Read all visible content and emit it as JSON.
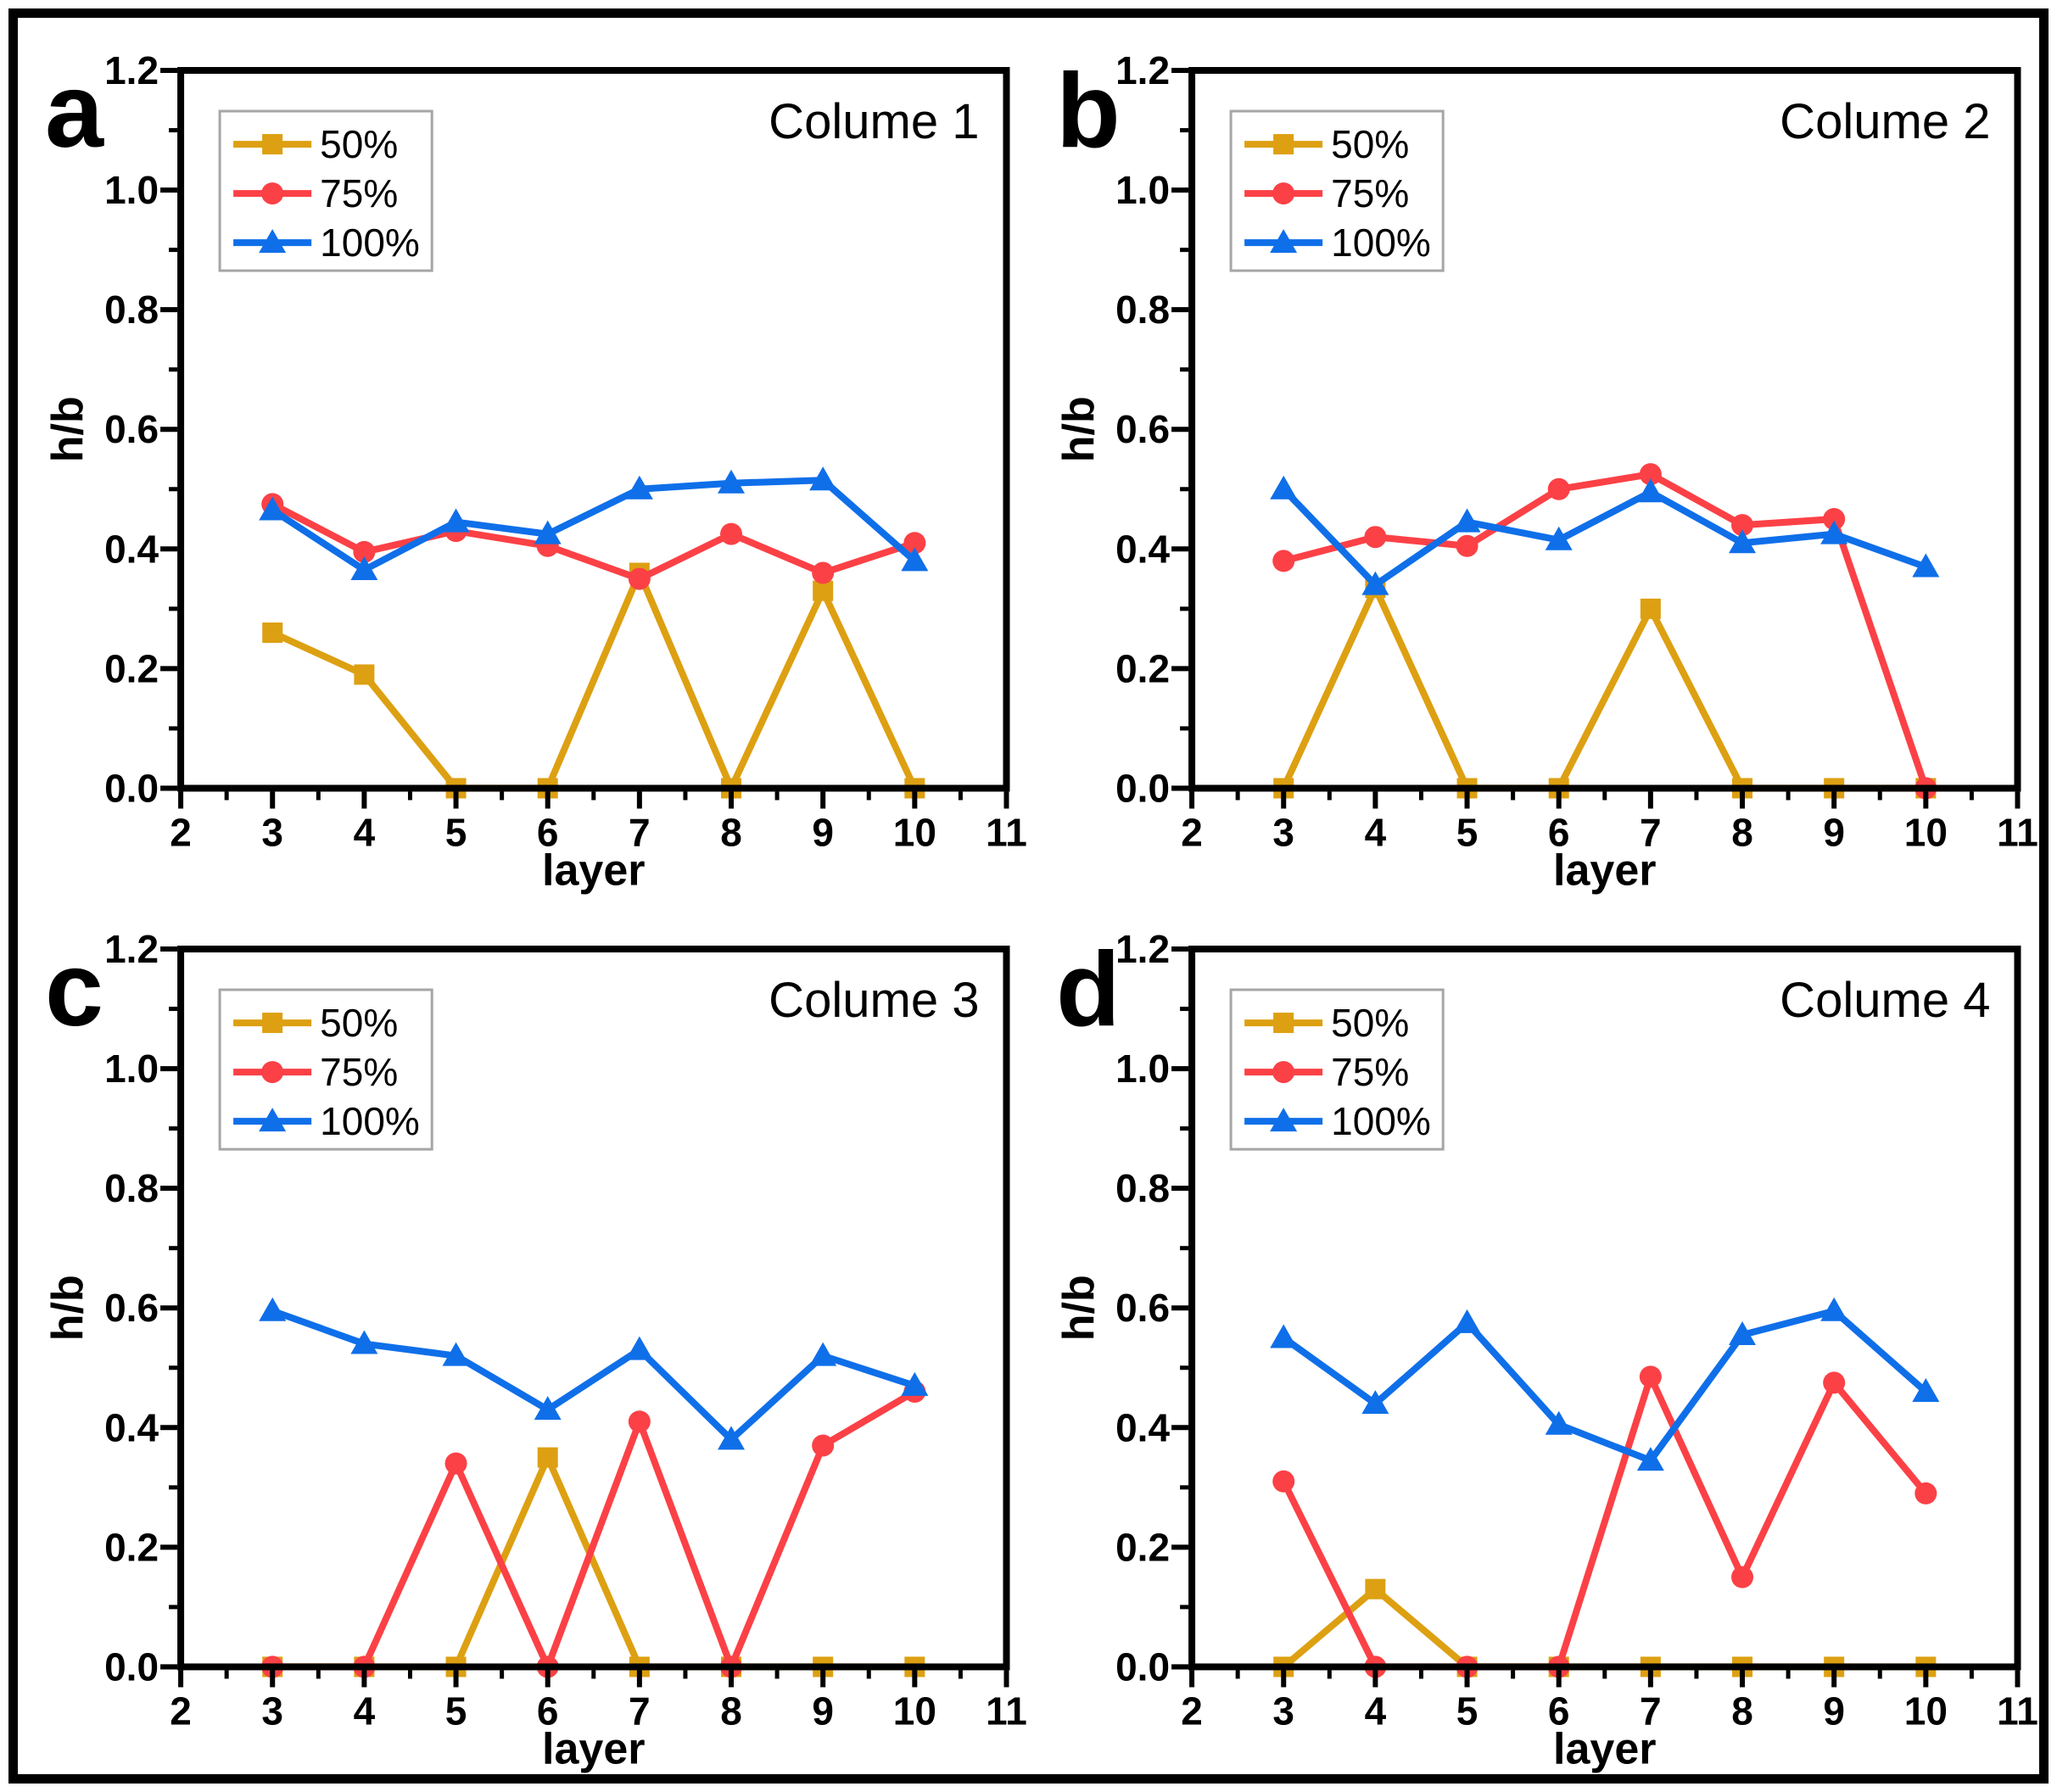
{
  "figure": {
    "background": "#ffffff",
    "border_color": "#000000"
  },
  "axis_style": {
    "spine_color": "#000000",
    "tick_color": "#000000",
    "legend_border_color": "#a6a6a6",
    "legend_background": "#ffffff"
  },
  "series_colors": {
    "50%": "#DDA012",
    "75%": "#FB4146",
    "100%": "#0F6FE9"
  },
  "chart_data": [
    {
      "type": "line",
      "panel_label": "a",
      "title": "Colume 1",
      "xlabel": "layer",
      "ylabel": "h/b",
      "xlim": [
        2,
        11
      ],
      "ylim": [
        0,
        1.2
      ],
      "xticks": [
        2,
        3,
        4,
        5,
        6,
        7,
        8,
        9,
        10,
        11
      ],
      "yticks": [
        0.0,
        0.2,
        0.4,
        0.6,
        0.8,
        1.0,
        1.2
      ],
      "minor_tick_step": {
        "x": 0.5,
        "y": 0.1
      },
      "grid": false,
      "legend_position": "upper-left",
      "x": [
        3,
        4,
        5,
        6,
        7,
        8,
        9,
        10
      ],
      "series": [
        {
          "name": "50%",
          "color": "#DDA012",
          "marker": "square",
          "values": [
            0.26,
            0.19,
            0.0,
            0.0,
            0.36,
            0.0,
            0.33,
            0.0
          ]
        },
        {
          "name": "75%",
          "color": "#FB4146",
          "marker": "circle",
          "values": [
            0.475,
            0.395,
            0.43,
            0.405,
            0.35,
            0.425,
            0.36,
            0.41
          ]
        },
        {
          "name": "100%",
          "color": "#0F6FE9",
          "marker": "triangle",
          "values": [
            0.465,
            0.365,
            0.445,
            0.425,
            0.5,
            0.51,
            0.515,
            0.38
          ]
        }
      ]
    },
    {
      "type": "line",
      "panel_label": "b",
      "title": "Colume 2",
      "xlabel": "layer",
      "ylabel": "h/b",
      "xlim": [
        2,
        11
      ],
      "ylim": [
        0,
        1.2
      ],
      "xticks": [
        2,
        3,
        4,
        5,
        6,
        7,
        8,
        9,
        10,
        11
      ],
      "yticks": [
        0.0,
        0.2,
        0.4,
        0.6,
        0.8,
        1.0,
        1.2
      ],
      "minor_tick_step": {
        "x": 0.5,
        "y": 0.1
      },
      "grid": false,
      "legend_position": "upper-left",
      "x": [
        3,
        4,
        5,
        6,
        7,
        8,
        9,
        10
      ],
      "series": [
        {
          "name": "50%",
          "color": "#DDA012",
          "marker": "square",
          "values": [
            0.0,
            0.335,
            0.0,
            0.0,
            0.3,
            0.0,
            0.0,
            0.0
          ]
        },
        {
          "name": "75%",
          "color": "#FB4146",
          "marker": "circle",
          "values": [
            0.38,
            0.42,
            0.405,
            0.5,
            0.525,
            0.44,
            0.45,
            0.0
          ]
        },
        {
          "name": "100%",
          "color": "#0F6FE9",
          "marker": "triangle",
          "values": [
            0.5,
            0.34,
            0.445,
            0.415,
            0.495,
            0.41,
            0.425,
            0.37
          ]
        }
      ]
    },
    {
      "type": "line",
      "panel_label": "c",
      "title": "Colume 3",
      "xlabel": "layer",
      "ylabel": "h/b",
      "xlim": [
        2,
        11
      ],
      "ylim": [
        0,
        1.2
      ],
      "xticks": [
        2,
        3,
        4,
        5,
        6,
        7,
        8,
        9,
        10,
        11
      ],
      "yticks": [
        0.0,
        0.2,
        0.4,
        0.6,
        0.8,
        1.0,
        1.2
      ],
      "minor_tick_step": {
        "x": 0.5,
        "y": 0.1
      },
      "grid": false,
      "legend_position": "upper-left",
      "x": [
        3,
        4,
        5,
        6,
        7,
        8,
        9,
        10
      ],
      "series": [
        {
          "name": "50%",
          "color": "#DDA012",
          "marker": "square",
          "values": [
            0.0,
            0.0,
            0.0,
            0.35,
            0.0,
            0.0,
            0.0,
            0.0
          ]
        },
        {
          "name": "75%",
          "color": "#FB4146",
          "marker": "circle",
          "values": [
            0.0,
            0.0,
            0.34,
            0.0,
            0.41,
            0.0,
            0.37,
            0.46
          ]
        },
        {
          "name": "100%",
          "color": "#0F6FE9",
          "marker": "triangle",
          "values": [
            0.595,
            0.54,
            0.52,
            0.43,
            0.53,
            0.38,
            0.52,
            0.47
          ]
        }
      ]
    },
    {
      "type": "line",
      "panel_label": "d",
      "title": "Colume 4",
      "xlabel": "layer",
      "ylabel": "h/b",
      "xlim": [
        2,
        11
      ],
      "ylim": [
        0,
        1.2
      ],
      "xticks": [
        2,
        3,
        4,
        5,
        6,
        7,
        8,
        9,
        10,
        11
      ],
      "yticks": [
        0.0,
        0.2,
        0.4,
        0.6,
        0.8,
        1.0,
        1.2
      ],
      "minor_tick_step": {
        "x": 0.5,
        "y": 0.1
      },
      "grid": false,
      "legend_position": "upper-left",
      "x": [
        3,
        4,
        5,
        6,
        7,
        8,
        9,
        10
      ],
      "series": [
        {
          "name": "50%",
          "color": "#DDA012",
          "marker": "square",
          "values": [
            0.0,
            0.13,
            0.0,
            0.0,
            0.0,
            0.0,
            0.0,
            0.0
          ]
        },
        {
          "name": "75%",
          "color": "#FB4146",
          "marker": "circle",
          "values": [
            0.31,
            0.0,
            0.0,
            0.0,
            0.485,
            0.15,
            0.475,
            0.29
          ]
        },
        {
          "name": "100%",
          "color": "#0F6FE9",
          "marker": "triangle",
          "values": [
            0.55,
            0.44,
            0.575,
            0.405,
            0.345,
            0.555,
            0.595,
            0.46
          ]
        }
      ]
    }
  ]
}
